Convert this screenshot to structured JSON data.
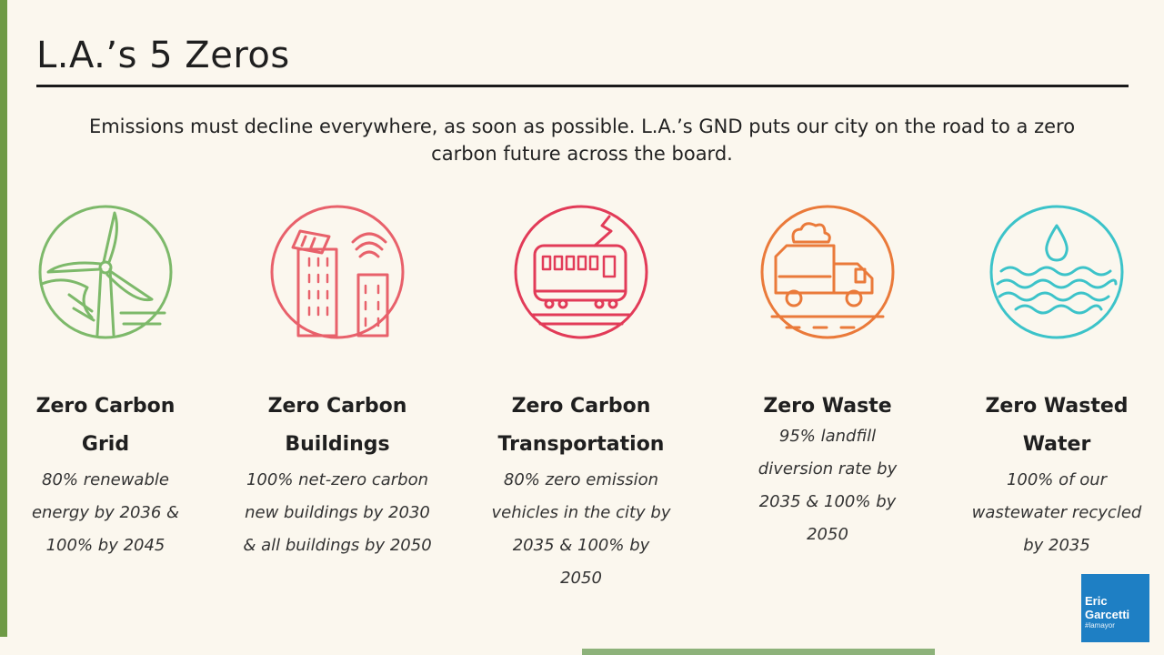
{
  "slide": {
    "title": "L.A.’s 5 Zeros",
    "subtitle": "Emissions must decline everywhere, as soon as possible. L.A.’s GND puts our city on the road to a zero carbon future across the board."
  },
  "colors": {
    "accent_green": "#6e9a45",
    "grid": "#7db96a",
    "buildings": "#e8616b",
    "transportation": "#e23b58",
    "waste": "#ea7a3a",
    "water": "#3cc3c9",
    "badge": "#1e7fc4"
  },
  "goals": [
    {
      "icon": "wind-turbine-icon",
      "title_line1": "Zero Carbon",
      "title_line2": "Grid",
      "body": [
        "80% renewable",
        "energy by 2036 &",
        "100% by 2045"
      ]
    },
    {
      "icon": "buildings-icon",
      "title_line1": "Zero Carbon",
      "title_line2": "Buildings",
      "body": [
        "100% net-zero carbon",
        "new buildings by 2030",
        "& all buildings by 2050"
      ]
    },
    {
      "icon": "tram-icon",
      "title_line1": "Zero Carbon",
      "title_line2": "Transportation",
      "body": [
        "80% zero emission",
        "vehicles in the city by",
        "2035 & 100% by",
        "2050"
      ]
    },
    {
      "icon": "dump-truck-icon",
      "title_line1": "Zero Waste",
      "title_line2": "",
      "body": [
        "95% landfill",
        "diversion rate by",
        "2035 & 100% by",
        "2050"
      ]
    },
    {
      "icon": "water-drop-icon",
      "title_line1": "Zero Wasted",
      "title_line2": "Water",
      "body": [
        "100% of our",
        "wastewater recycled",
        "by 2035"
      ]
    }
  ],
  "badge": {
    "line1": "Eric",
    "line2": "Garcetti",
    "line3": "#lamayor"
  }
}
